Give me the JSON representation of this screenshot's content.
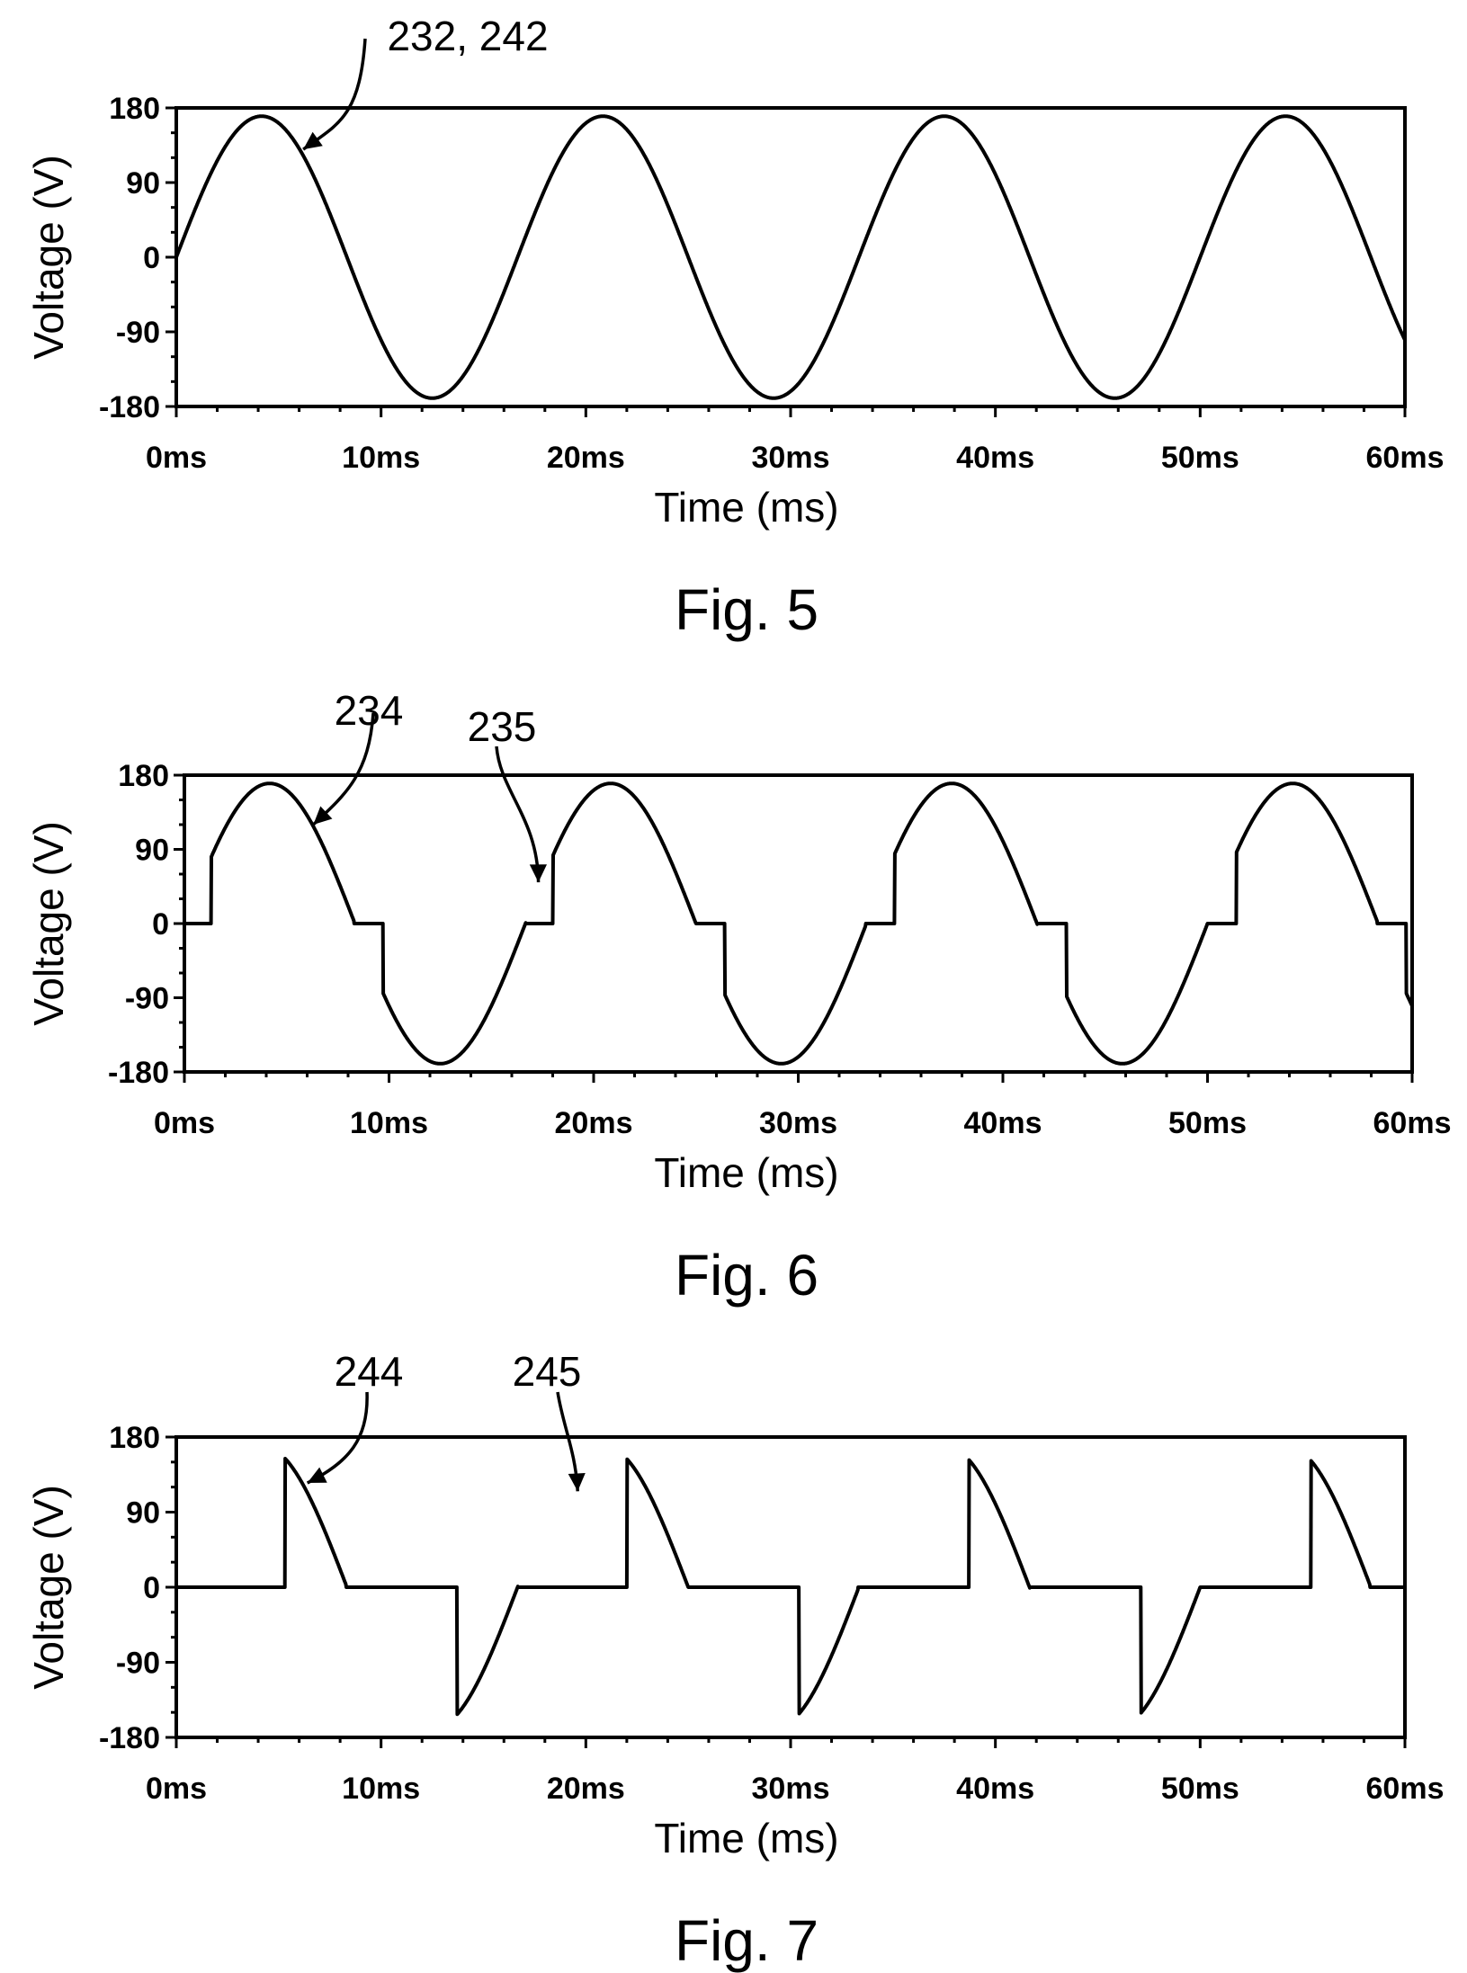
{
  "chart_data": [
    {
      "type": "line",
      "figure_caption": "Fig. 5",
      "xlabel": "Time (ms)",
      "ylabel": "Voltage (V)",
      "xlim": [
        0,
        60
      ],
      "ylim": [
        -180,
        180
      ],
      "x_tick_values": [
        0,
        10,
        20,
        30,
        40,
        50,
        60
      ],
      "x_tick_labels": [
        "0ms",
        "10ms",
        "20ms",
        "30ms",
        "40ms",
        "50ms",
        "60ms"
      ],
      "y_tick_values": [
        180,
        90,
        0,
        -90,
        -180
      ],
      "y_tick_labels": [
        "180",
        "90",
        "0",
        "-90",
        "-180"
      ],
      "grid": false,
      "series": [
        {
          "waveform": "sine",
          "amplitude": 170,
          "period_ms": 16.667,
          "reference_label": "232, 242"
        }
      ],
      "annotations": [
        {
          "text": "232, 242",
          "points_to": [
            6.2,
            130
          ]
        }
      ]
    },
    {
      "type": "line",
      "figure_caption": "Fig. 6",
      "xlabel": "Time (ms)",
      "ylabel": "Voltage (V)",
      "xlim": [
        0,
        60
      ],
      "ylim": [
        -180,
        180
      ],
      "x_tick_values": [
        0,
        10,
        20,
        30,
        40,
        50,
        60
      ],
      "x_tick_labels": [
        "0ms",
        "10ms",
        "20ms",
        "30ms",
        "40ms",
        "50ms",
        "60ms"
      ],
      "y_tick_values": [
        180,
        90,
        0,
        -90,
        -180
      ],
      "y_tick_labels": [
        "180",
        "90",
        "0",
        "-90",
        "-180"
      ],
      "grid": false,
      "series": [
        {
          "waveform": "sine_with_zero_gaps",
          "amplitude": 170,
          "period_ms": 16.667,
          "gap_intervals_ms": [
            [
              0,
              1.3
            ],
            [
              8.3,
              9.7
            ],
            [
              16.7,
              18.0
            ],
            [
              25.0,
              26.4
            ],
            [
              33.3,
              34.7
            ],
            [
              41.7,
              43.1
            ],
            [
              50.0,
              51.4
            ],
            [
              58.3,
              59.7
            ]
          ]
        }
      ],
      "annotations": [
        {
          "text": "234",
          "points_to": [
            6.3,
            120
          ]
        },
        {
          "text": "235",
          "points_to": [
            17.3,
            50
          ]
        }
      ]
    },
    {
      "type": "line",
      "figure_caption": "Fig. 7",
      "xlabel": "Time (ms)",
      "ylabel": "Voltage (V)",
      "xlim": [
        0,
        60
      ],
      "ylim": [
        -180,
        180
      ],
      "x_tick_values": [
        0,
        10,
        20,
        30,
        40,
        50,
        60
      ],
      "x_tick_labels": [
        "0ms",
        "10ms",
        "20ms",
        "30ms",
        "40ms",
        "50ms",
        "60ms"
      ],
      "y_tick_values": [
        180,
        90,
        0,
        -90,
        -180
      ],
      "y_tick_labels": [
        "180",
        "90",
        "0",
        "-90",
        "-180"
      ],
      "grid": false,
      "series": [
        {
          "waveform": "sine_with_zero_gaps",
          "amplitude": 170,
          "period_ms": 16.667,
          "gap_intervals_ms": [
            [
              0,
              5.3
            ],
            [
              8.3,
              13.7
            ],
            [
              16.7,
              22.0
            ],
            [
              25.0,
              30.4
            ],
            [
              33.3,
              38.7
            ],
            [
              41.7,
              47.1
            ],
            [
              50.0,
              55.4
            ],
            [
              58.3,
              60.0
            ]
          ]
        }
      ],
      "annotations": [
        {
          "text": "244",
          "points_to": [
            6.4,
            125
          ]
        },
        {
          "text": "245",
          "points_to": [
            19.6,
            115
          ]
        }
      ]
    }
  ]
}
